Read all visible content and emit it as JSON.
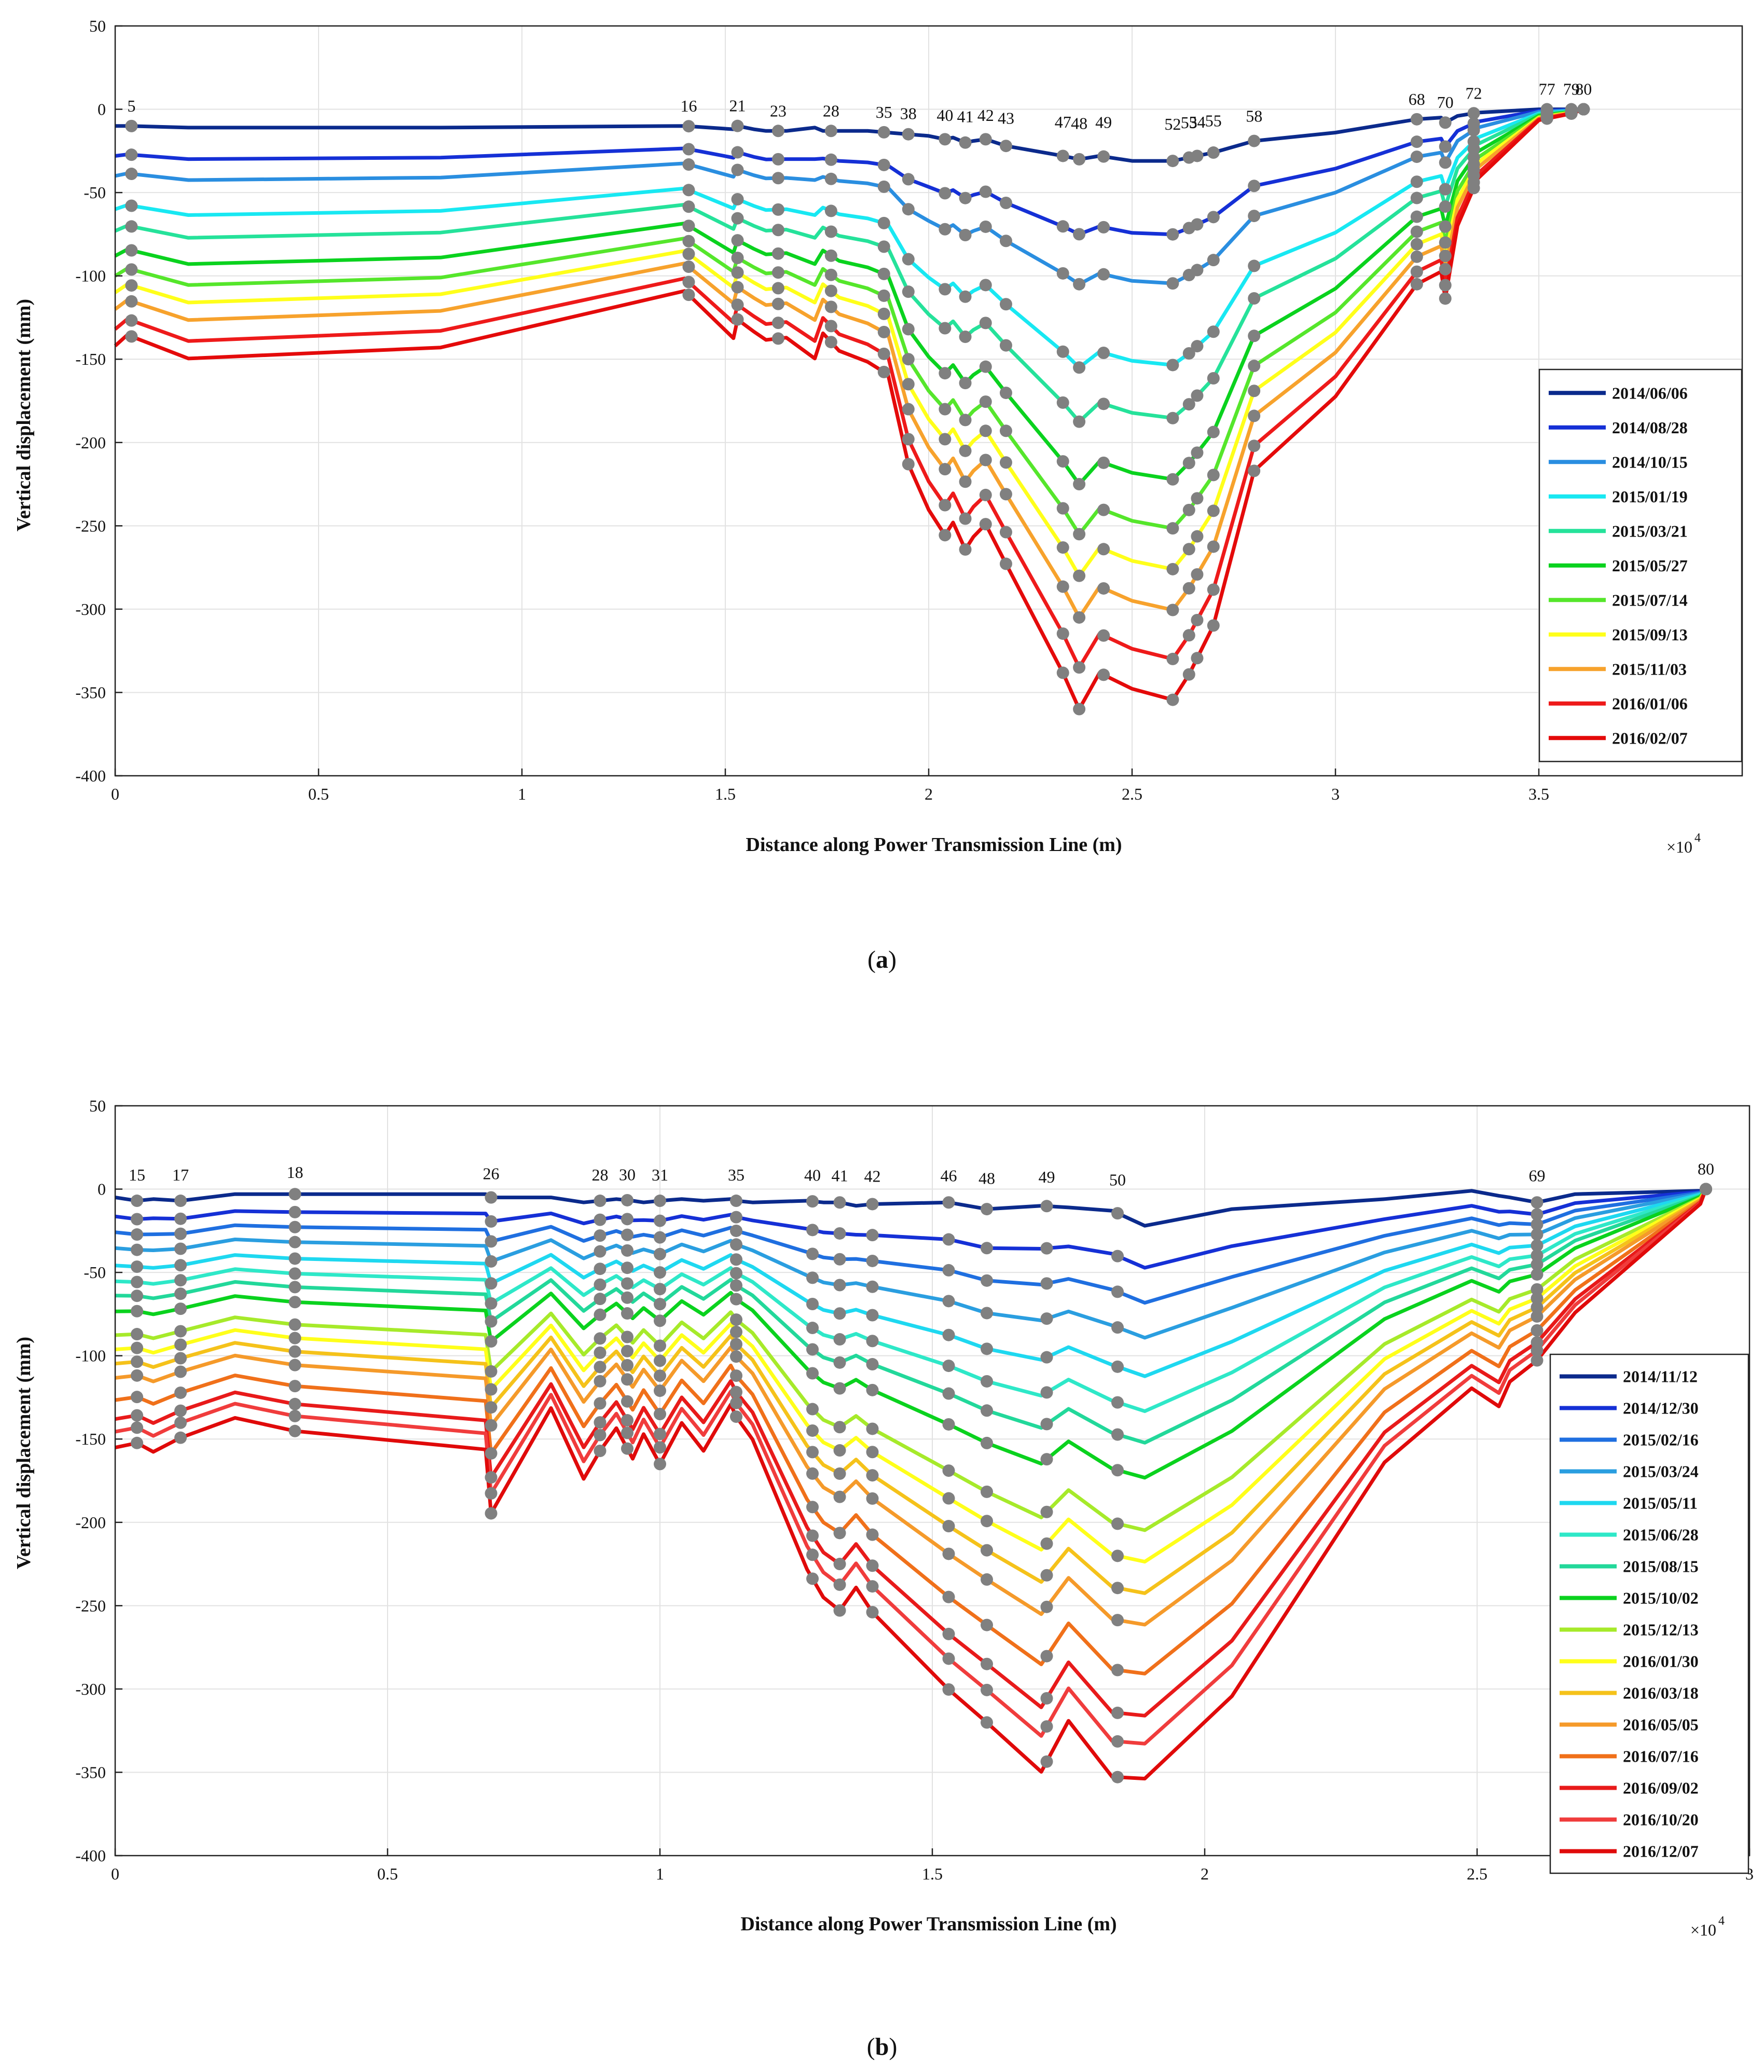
{
  "chart_data": [
    {
      "type": "line",
      "panel": "a",
      "caption_letter": "a",
      "xlabel": "Distance along Power Transmission Line (m)",
      "ylabel": "Vertical displacement (mm)",
      "x_multiplier": "×10",
      "x_multiplier_exp": "4",
      "xlim": [
        0,
        4
      ],
      "ylim": [
        -400,
        50
      ],
      "xticks": [
        0,
        0.5,
        1,
        1.5,
        2,
        2.5,
        3,
        3.5
      ],
      "xtick_labels": [
        "0",
        "0.5",
        "1",
        "1.5",
        "2",
        "2.5",
        "3",
        "3.5"
      ],
      "yticks": [
        50,
        0,
        -50,
        -100,
        -150,
        -200,
        -250,
        -300,
        -350,
        -400
      ],
      "ytick_labels": [
        "50",
        "0",
        "-50",
        "-100",
        "-150",
        "-200",
        "-250",
        "-300",
        "-350",
        "-400"
      ],
      "x": [
        0,
        0.03,
        0.18,
        0.8,
        1.4,
        1.52,
        1.53,
        1.57,
        1.6,
        1.65,
        1.72,
        1.74,
        1.78,
        1.85,
        1.9,
        1.95,
        2.0,
        2.04,
        2.06,
        2.09,
        2.11,
        2.14,
        2.19,
        2.33,
        2.37,
        2.42,
        2.5,
        2.6,
        2.64,
        2.7,
        2.8,
        3.0,
        3.2,
        3.26,
        3.27,
        3.3,
        3.35,
        3.5,
        3.58,
        3.61
      ],
      "base_profile": [
        1.0,
        0.95,
        1.05,
        1.0,
        0.75,
        0.95,
        0.88,
        0.92,
        0.95,
        0.94,
        1.05,
        0.92,
        1.0,
        1.05,
        1.1,
        1.5,
        1.7,
        1.8,
        1.75,
        1.85,
        1.8,
        1.75,
        1.9,
        2.35,
        2.5,
        2.35,
        2.4,
        2.45,
        2.35,
        2.15,
        1.5,
        1.2,
        0.75,
        0.7,
        0.8,
        0.5,
        0.3,
        0.05,
        0.02,
        0.0
      ],
      "top_line": [
        -10,
        -10,
        -11,
        -11,
        -10,
        -12,
        -10,
        -12,
        -13,
        -13,
        -11,
        -13,
        -13,
        -13,
        -14,
        -15,
        -16,
        -18,
        -17,
        -20,
        -19,
        -18,
        -22,
        -28,
        -30,
        -28,
        -31,
        -31,
        -29,
        -26,
        -19,
        -14,
        -6,
        -5,
        -8,
        -4,
        -2,
        0,
        0,
        0
      ],
      "poles": [
        {
          "label": "5",
          "x": 0.04
        },
        {
          "label": "16",
          "x": 1.41
        },
        {
          "label": "21",
          "x": 1.53
        },
        {
          "label": "23",
          "x": 1.63
        },
        {
          "label": "28",
          "x": 1.76
        },
        {
          "label": "35",
          "x": 1.89
        },
        {
          "label": "38",
          "x": 1.95
        },
        {
          "label": "40",
          "x": 2.04
        },
        {
          "label": "41",
          "x": 2.09
        },
        {
          "label": "42",
          "x": 2.14
        },
        {
          "label": "43",
          "x": 2.19
        },
        {
          "label": "47",
          "x": 2.33
        },
        {
          "label": "48",
          "x": 2.37
        },
        {
          "label": "49",
          "x": 2.43
        },
        {
          "label": "52",
          "x": 2.6
        },
        {
          "label": "53",
          "x": 2.64
        },
        {
          "label": "54",
          "x": 2.66
        },
        {
          "label": "55",
          "x": 2.7
        },
        {
          "label": "58",
          "x": 2.8
        },
        {
          "label": "68",
          "x": 3.2
        },
        {
          "label": "70",
          "x": 3.27
        },
        {
          "label": "72",
          "x": 3.34
        },
        {
          "label": "77",
          "x": 3.52
        },
        {
          "label": "79",
          "x": 3.58
        },
        {
          "label": "80",
          "x": 3.61
        }
      ],
      "series": [
        {
          "name": "2014/06/06",
          "color": "#0b2a8c",
          "scale": 0
        },
        {
          "name": "2014/08/28",
          "color": "#1530d6",
          "scale": 18
        },
        {
          "name": "2014/10/15",
          "color": "#2a8ee0",
          "scale": 30
        },
        {
          "name": "2015/01/19",
          "color": "#18e8f2",
          "scale": 50
        },
        {
          "name": "2015/03/21",
          "color": "#25e29a",
          "scale": 63
        },
        {
          "name": "2015/05/27",
          "color": "#0ad21e",
          "scale": 78
        },
        {
          "name": "2015/07/14",
          "color": "#55e62b",
          "scale": 90
        },
        {
          "name": "2015/09/13",
          "color": "#ffff1a",
          "scale": 100
        },
        {
          "name": "2015/11/03",
          "color": "#f7a22c",
          "scale": 110
        },
        {
          "name": "2016/01/06",
          "color": "#ee1a1a",
          "scale": 122
        },
        {
          "name": "2016/02/07",
          "color": "#e40a0a",
          "scale": 132
        }
      ]
    },
    {
      "type": "line",
      "panel": "b",
      "caption_letter": "b",
      "xlabel": "Distance along Power Transmission Line (m)",
      "ylabel": "Vertical displacement (mm)",
      "x_multiplier": "×10",
      "x_multiplier_exp": "4",
      "xlim": [
        0,
        3
      ],
      "ylim": [
        -400,
        50
      ],
      "xticks": [
        0,
        0.5,
        1,
        1.5,
        2,
        2.5,
        3
      ],
      "xtick_labels": [
        "0",
        "0.5",
        "1",
        "1.5",
        "2",
        "2.5",
        "3"
      ],
      "yticks": [
        50,
        0,
        -50,
        -100,
        -150,
        -200,
        -250,
        -300,
        -350,
        -400
      ],
      "ytick_labels": [
        "50",
        "0",
        "-50",
        "-100",
        "-150",
        "-200",
        "-250",
        "-300",
        "-350",
        "-400"
      ],
      "x": [
        0,
        0.04,
        0.07,
        0.12,
        0.22,
        0.33,
        0.68,
        0.69,
        0.8,
        0.86,
        0.89,
        0.92,
        0.95,
        0.97,
        1.0,
        1.04,
        1.08,
        1.13,
        1.14,
        1.17,
        1.27,
        1.3,
        1.33,
        1.36,
        1.39,
        1.53,
        1.6,
        1.7,
        1.75,
        1.83,
        1.89,
        2.05,
        2.33,
        2.49,
        2.54,
        2.56,
        2.61,
        2.68,
        2.91,
        2.92
      ],
      "base_profile": [
        0.95,
        0.92,
        0.96,
        0.9,
        0.85,
        0.9,
        0.97,
        1.2,
        0.8,
        1.05,
        0.95,
        0.87,
        0.98,
        0.88,
        1.0,
        0.85,
        0.95,
        0.78,
        0.82,
        0.9,
        1.4,
        1.5,
        1.55,
        1.45,
        1.55,
        1.85,
        1.95,
        2.15,
        1.95,
        2.15,
        2.1,
        1.85,
        1.0,
        0.75,
        0.8,
        0.7,
        0.6,
        0.45,
        0.05,
        0.0
      ],
      "top_line": [
        -5,
        -7,
        -6,
        -7,
        -3,
        -3,
        -3,
        -5,
        -5,
        -8,
        -7,
        -6,
        -7,
        -8,
        -7,
        -6,
        -7,
        -6,
        -7,
        -8,
        -7,
        -8,
        -8,
        -10,
        -9,
        -8,
        -12,
        -10,
        -11,
        -13,
        -22,
        -12,
        -6,
        -1,
        -4,
        -5,
        -8,
        -3,
        -1,
        0
      ],
      "poles": [
        {
          "label": "15",
          "x": 0.04
        },
        {
          "label": "17",
          "x": 0.12
        },
        {
          "label": "18",
          "x": 0.33
        },
        {
          "label": "26",
          "x": 0.69
        },
        {
          "label": "28",
          "x": 0.89
        },
        {
          "label": "30",
          "x": 0.94
        },
        {
          "label": "31",
          "x": 1.0
        },
        {
          "label": "35",
          "x": 1.14
        },
        {
          "label": "40",
          "x": 1.28
        },
        {
          "label": "41",
          "x": 1.33
        },
        {
          "label": "42",
          "x": 1.39
        },
        {
          "label": "46",
          "x": 1.53
        },
        {
          "label": "48",
          "x": 1.6
        },
        {
          "label": "49",
          "x": 1.71
        },
        {
          "label": "50",
          "x": 1.84
        },
        {
          "label": "69",
          "x": 2.61
        },
        {
          "label": "80",
          "x": 2.92
        }
      ],
      "series": [
        {
          "name": "2014/11/12",
          "color": "#0b2a8c",
          "scale": 0
        },
        {
          "name": "2014/12/30",
          "color": "#1530d6",
          "scale": 12
        },
        {
          "name": "2015/02/16",
          "color": "#1f6fe0",
          "scale": 22
        },
        {
          "name": "2015/03/24",
          "color": "#2a9ee0",
          "scale": 32
        },
        {
          "name": "2015/05/11",
          "color": "#1ed8f0",
          "scale": 43
        },
        {
          "name": "2015/06/28",
          "color": "#2ee8c8",
          "scale": 53
        },
        {
          "name": "2015/08/15",
          "color": "#22d89a",
          "scale": 62
        },
        {
          "name": "2015/10/02",
          "color": "#0ad21e",
          "scale": 72
        },
        {
          "name": "2015/12/13",
          "color": "#a6ea2a",
          "scale": 87
        },
        {
          "name": "2016/01/30",
          "color": "#ffff1a",
          "scale": 96
        },
        {
          "name": "2016/03/18",
          "color": "#f5c21a",
          "scale": 105
        },
        {
          "name": "2016/05/05",
          "color": "#f59a2a",
          "scale": 114
        },
        {
          "name": "2016/07/16",
          "color": "#f0701a",
          "scale": 128
        },
        {
          "name": "2016/09/02",
          "color": "#e81a1a",
          "scale": 140
        },
        {
          "name": "2016/10/20",
          "color": "#f03c3c",
          "scale": 148
        },
        {
          "name": "2016/12/07",
          "color": "#e00a0a",
          "scale": 158
        }
      ]
    }
  ]
}
